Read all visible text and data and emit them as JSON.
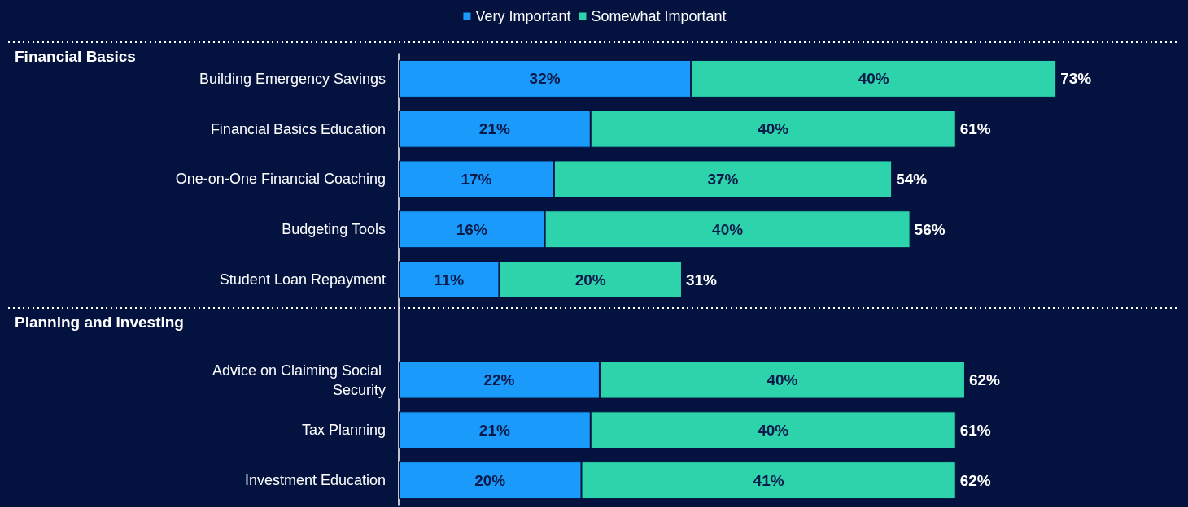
{
  "chart_data": {
    "type": "bar",
    "orientation": "horizontal",
    "stacked": true,
    "categories": [
      "Building Emergency Savings",
      "Financial Basics Education",
      "One-on-One Financial Coaching",
      "Budgeting Tools",
      "Student Loan Repayment",
      null,
      "Advice on Claiming Social Security",
      "Tax Planning",
      "Investment Education"
    ],
    "series": [
      {
        "name": "Very Important",
        "color": "#1a9bfc",
        "values": [
          32,
          21,
          17,
          16,
          11,
          null,
          22,
          21,
          20
        ],
        "value_labels": [
          "32%",
          "21%",
          "17%",
          "16%",
          "11%",
          null,
          "22%",
          "21%",
          "20%"
        ]
      },
      {
        "name": "Somewhat Important",
        "color": "#2dd4ab",
        "values": [
          40,
          40,
          37,
          40,
          20,
          null,
          40,
          40,
          41
        ],
        "value_labels": [
          "40%",
          "40%",
          "37%",
          "40%",
          "20%",
          null,
          "40%",
          "40%",
          "41%"
        ]
      }
    ],
    "totals": [
      "73%",
      "61%",
      "54%",
      "56%",
      "31%",
      null,
      "62%",
      "61%",
      "62%"
    ],
    "annotations": [
      "Financial Basics",
      "Planning and Investing"
    ],
    "legend": "top",
    "grid": false
  }
}
